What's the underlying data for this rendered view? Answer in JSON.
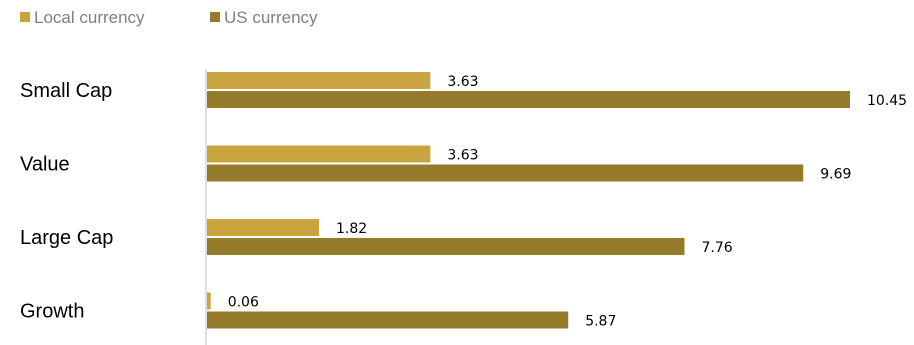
{
  "chart_data": {
    "type": "bar",
    "orientation": "horizontal",
    "categories": [
      "Small Cap",
      "Value",
      "Large Cap",
      "Growth"
    ],
    "series": [
      {
        "name": "Local currency",
        "color": "#C9A43E",
        "values": [
          3.63,
          3.63,
          1.82,
          0.06
        ]
      },
      {
        "name": "US currency",
        "color": "#957B2B",
        "values": [
          10.45,
          9.69,
          7.76,
          5.87
        ]
      }
    ],
    "title": "",
    "xlabel": "",
    "ylabel": "",
    "xlim": [
      0,
      11.5
    ],
    "grid": false,
    "legend": "top-left",
    "data_labels": true
  }
}
